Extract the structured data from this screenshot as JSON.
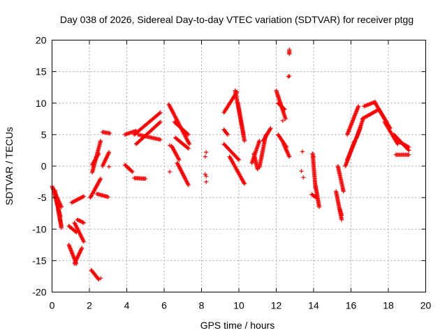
{
  "chart_data": {
    "type": "scatter",
    "title": "Day 038 of 2026, Sidereal Day-to-day VTEC variation (SDTVAR) for receiver ptgg",
    "xlabel": "GPS time / hours",
    "ylabel": "SDTVAR / TECUs",
    "xlim": [
      0,
      20
    ],
    "ylim": [
      -20,
      20
    ],
    "xticks": [
      0,
      2,
      4,
      6,
      8,
      10,
      12,
      14,
      16,
      18,
      20
    ],
    "yticks": [
      -20,
      -15,
      -10,
      -5,
      0,
      5,
      10,
      15,
      20
    ],
    "grid": true,
    "marker": "+",
    "color": "#ff0000",
    "segments": [
      {
        "x0": 0.0,
        "y0": -3.2,
        "x1": 0.5,
        "y1": -6.5
      },
      {
        "x0": 0.05,
        "y0": -3.5,
        "x1": 0.45,
        "y1": -8.0
      },
      {
        "x0": 0.15,
        "y0": -3.8,
        "x1": 0.5,
        "y1": -9.5
      },
      {
        "x0": 0.25,
        "y0": -5.5,
        "x1": 0.5,
        "y1": -9.8
      },
      {
        "x0": 0.9,
        "y0": -9.5,
        "x1": 1.3,
        "y1": -10.5
      },
      {
        "x0": 1.2,
        "y0": -9.0,
        "x1": 1.7,
        "y1": -12.0
      },
      {
        "x0": 1.35,
        "y0": -8.5,
        "x1": 1.7,
        "y1": -9.0
      },
      {
        "x0": 0.9,
        "y0": -12.5,
        "x1": 1.3,
        "y1": -15.5
      },
      {
        "x0": 1.2,
        "y0": -15.5,
        "x1": 1.6,
        "y1": -13.0
      },
      {
        "x0": 1.05,
        "y0": -5.8,
        "x1": 1.7,
        "y1": -4.8
      },
      {
        "x0": 2.1,
        "y0": -16.5,
        "x1": 2.5,
        "y1": -18.0
      },
      {
        "x0": 2.05,
        "y0": -5.0,
        "x1": 2.6,
        "y1": -2.0
      },
      {
        "x0": 2.15,
        "y0": -1.0,
        "x1": 2.6,
        "y1": 4.0
      },
      {
        "x0": 2.15,
        "y0": 0.2,
        "x1": 2.5,
        "y1": 2.0
      },
      {
        "x0": 2.4,
        "y0": -4.4,
        "x1": 3.0,
        "y1": -4.9
      },
      {
        "x0": 2.7,
        "y0": 5.4,
        "x1": 3.1,
        "y1": 5.2
      },
      {
        "x0": 2.7,
        "y0": 0.0,
        "x1": 3.05,
        "y1": 2.2
      },
      {
        "x0": 3.9,
        "y0": 5.0,
        "x1": 4.5,
        "y1": 5.6
      },
      {
        "x0": 3.9,
        "y0": 0.2,
        "x1": 4.3,
        "y1": -0.9
      },
      {
        "x0": 4.4,
        "y0": -1.9,
        "x1": 5.0,
        "y1": -2.0
      },
      {
        "x0": 4.4,
        "y0": 5.0,
        "x1": 5.8,
        "y1": 8.5
      },
      {
        "x0": 4.5,
        "y0": 3.5,
        "x1": 5.8,
        "y1": 7.0
      },
      {
        "x0": 4.6,
        "y0": 5.0,
        "x1": 5.8,
        "y1": 4.2
      },
      {
        "x0": 6.25,
        "y0": 9.8,
        "x1": 7.35,
        "y1": 3.5
      },
      {
        "x0": 6.55,
        "y0": 7.0,
        "x1": 7.3,
        "y1": 5.0
      },
      {
        "x0": 6.6,
        "y0": 4.5,
        "x1": 7.3,
        "y1": 2.8
      },
      {
        "x0": 6.7,
        "y0": 0.5,
        "x1": 7.3,
        "y1": -3.0
      },
      {
        "x0": 6.4,
        "y0": 3.2,
        "x1": 6.8,
        "y1": 1.0
      },
      {
        "x0": 9.2,
        "y0": 8.5,
        "x1": 9.9,
        "y1": 11.8
      },
      {
        "x0": 9.8,
        "y0": 12.0,
        "x1": 10.25,
        "y1": 5.0
      },
      {
        "x0": 9.95,
        "y0": 10.0,
        "x1": 10.3,
        "y1": 4.0
      },
      {
        "x0": 9.2,
        "y0": 3.5,
        "x1": 10.0,
        "y1": 1.0
      },
      {
        "x0": 9.5,
        "y0": 1.5,
        "x1": 10.3,
        "y1": -2.8
      },
      {
        "x0": 9.2,
        "y0": 5.8,
        "x1": 9.4,
        "y1": 5.0
      },
      {
        "x0": 10.7,
        "y0": 0.5,
        "x1": 11.1,
        "y1": 4.0
      },
      {
        "x0": 10.8,
        "y0": 2.0,
        "x1": 11.0,
        "y1": -0.5
      },
      {
        "x0": 11.1,
        "y0": -0.2,
        "x1": 11.45,
        "y1": 5.0
      },
      {
        "x0": 11.3,
        "y0": 4.0,
        "x1": 11.7,
        "y1": 6.0
      },
      {
        "x0": 12.0,
        "y0": 12.0,
        "x1": 12.5,
        "y1": 7.5
      },
      {
        "x0": 12.1,
        "y0": 10.0,
        "x1": 12.45,
        "y1": 9.0
      },
      {
        "x0": 12.1,
        "y0": 5.0,
        "x1": 12.55,
        "y1": 3.0
      },
      {
        "x0": 12.4,
        "y0": 3.5,
        "x1": 12.7,
        "y1": 1.5
      },
      {
        "x0": 12.7,
        "y0": 18.3,
        "x1": 12.7,
        "y1": 17.8
      },
      {
        "x0": 13.95,
        "y0": 2.0,
        "x1": 14.1,
        "y1": -3.5
      },
      {
        "x0": 13.9,
        "y0": -4.5,
        "x1": 14.15,
        "y1": -5.0
      },
      {
        "x0": 14.1,
        "y0": -3.0,
        "x1": 14.3,
        "y1": -6.5
      },
      {
        "x0": 15.3,
        "y0": 0.0,
        "x1": 15.6,
        "y1": -4.0
      },
      {
        "x0": 15.2,
        "y0": -4.0,
        "x1": 15.5,
        "y1": -8.5
      },
      {
        "x0": 15.4,
        "y0": -6.8,
        "x1": 15.5,
        "y1": -7.8
      },
      {
        "x0": 15.8,
        "y0": 1.0,
        "x1": 16.5,
        "y1": 6.0
      },
      {
        "x0": 15.8,
        "y0": 5.0,
        "x1": 16.4,
        "y1": 9.5
      },
      {
        "x0": 15.7,
        "y0": 0.0,
        "x1": 16.2,
        "y1": 4.0
      },
      {
        "x0": 16.3,
        "y0": 4.5,
        "x1": 16.65,
        "y1": 7.5
      },
      {
        "x0": 16.7,
        "y0": 9.5,
        "x1": 17.3,
        "y1": 10.2
      },
      {
        "x0": 16.6,
        "y0": 7.5,
        "x1": 17.5,
        "y1": 9.0
      },
      {
        "x0": 17.3,
        "y0": 10.0,
        "x1": 17.9,
        "y1": 7.0
      },
      {
        "x0": 17.5,
        "y0": 9.0,
        "x1": 18.1,
        "y1": 6.0
      },
      {
        "x0": 17.8,
        "y0": 7.0,
        "x1": 18.5,
        "y1": 3.5
      },
      {
        "x0": 18.3,
        "y0": 5.0,
        "x1": 19.1,
        "y1": 2.5
      },
      {
        "x0": 18.5,
        "y0": 4.0,
        "x1": 19.1,
        "y1": 3.0
      },
      {
        "x0": 18.4,
        "y0": 1.8,
        "x1": 19.1,
        "y1": 1.8
      }
    ],
    "points": [
      {
        "x": 2.6,
        "y": -17.8
      },
      {
        "x": 3.05,
        "y": -0.1
      },
      {
        "x": 4.1,
        "y": -0.4
      },
      {
        "x": 6.3,
        "y": -0.9
      },
      {
        "x": 6.3,
        "y": 3.3
      },
      {
        "x": 8.2,
        "y": 1.5
      },
      {
        "x": 8.25,
        "y": 2.2
      },
      {
        "x": 8.2,
        "y": -1.3
      },
      {
        "x": 8.25,
        "y": -1.6
      },
      {
        "x": 8.25,
        "y": -2.5
      },
      {
        "x": 12.35,
        "y": 7.2
      },
      {
        "x": 12.7,
        "y": 14.3
      },
      {
        "x": 12.65,
        "y": 14.2
      },
      {
        "x": 12.7,
        "y": 18.5
      },
      {
        "x": 13.4,
        "y": 2.3
      },
      {
        "x": 13.35,
        "y": -0.8
      },
      {
        "x": 13.45,
        "y": -1.8
      },
      {
        "x": 14.0,
        "y": 1.5
      }
    ]
  }
}
